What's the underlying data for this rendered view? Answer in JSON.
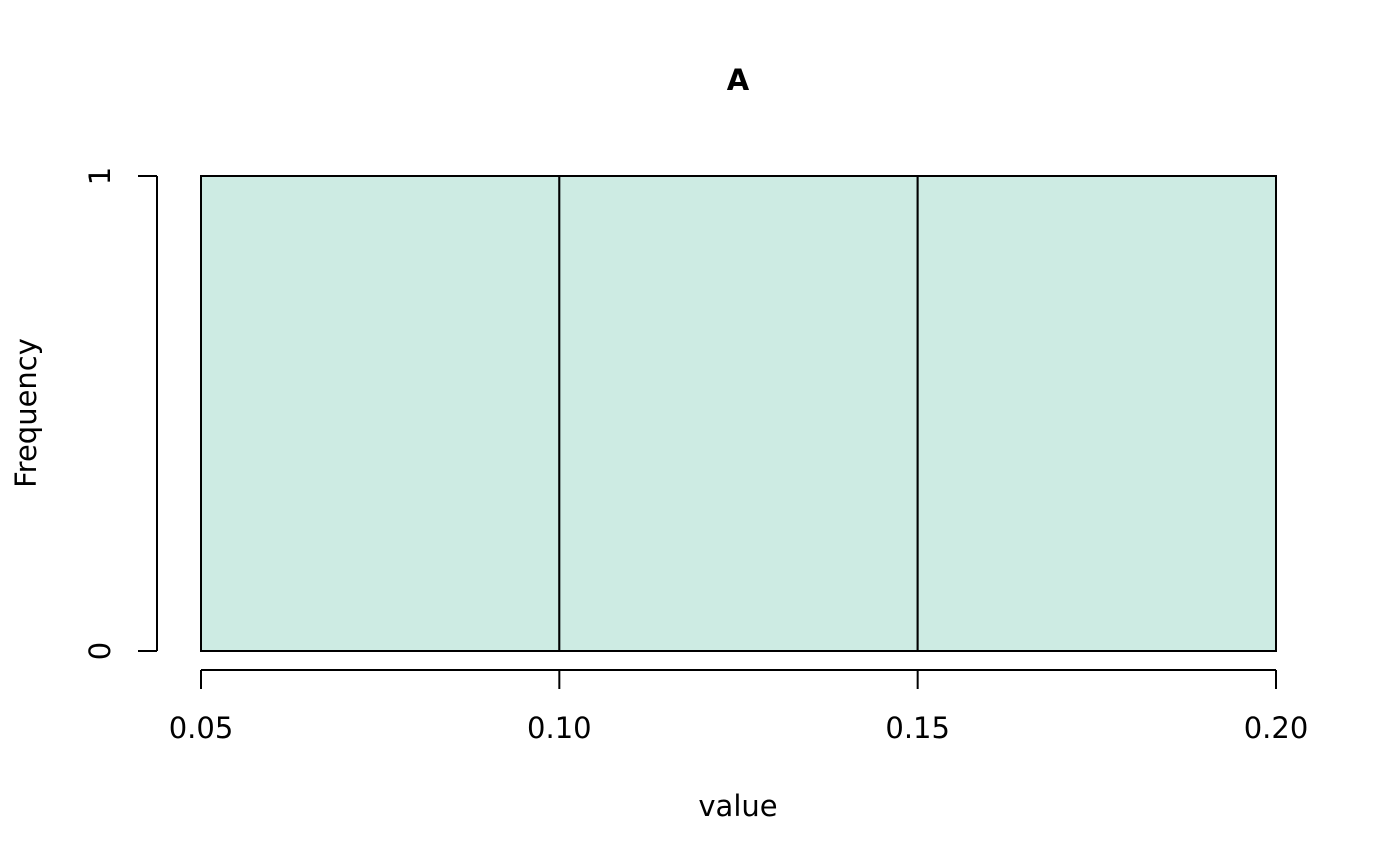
{
  "chart_data": {
    "type": "bar",
    "title": "A",
    "xlabel": "value",
    "ylabel": "Frequency",
    "bins": [
      {
        "from": 0.05,
        "to": 0.1,
        "count": 1
      },
      {
        "from": 0.1,
        "to": 0.15,
        "count": 1
      },
      {
        "from": 0.15,
        "to": 0.2,
        "count": 1
      }
    ],
    "xlim": [
      0.05,
      0.2
    ],
    "ylim": [
      0,
      1
    ],
    "x_ticks": [
      "0.05",
      "0.10",
      "0.15",
      "0.20"
    ],
    "y_ticks": [
      "0",
      "1"
    ],
    "bar_color": "#cdebe3",
    "grid": false,
    "legend": "none"
  }
}
